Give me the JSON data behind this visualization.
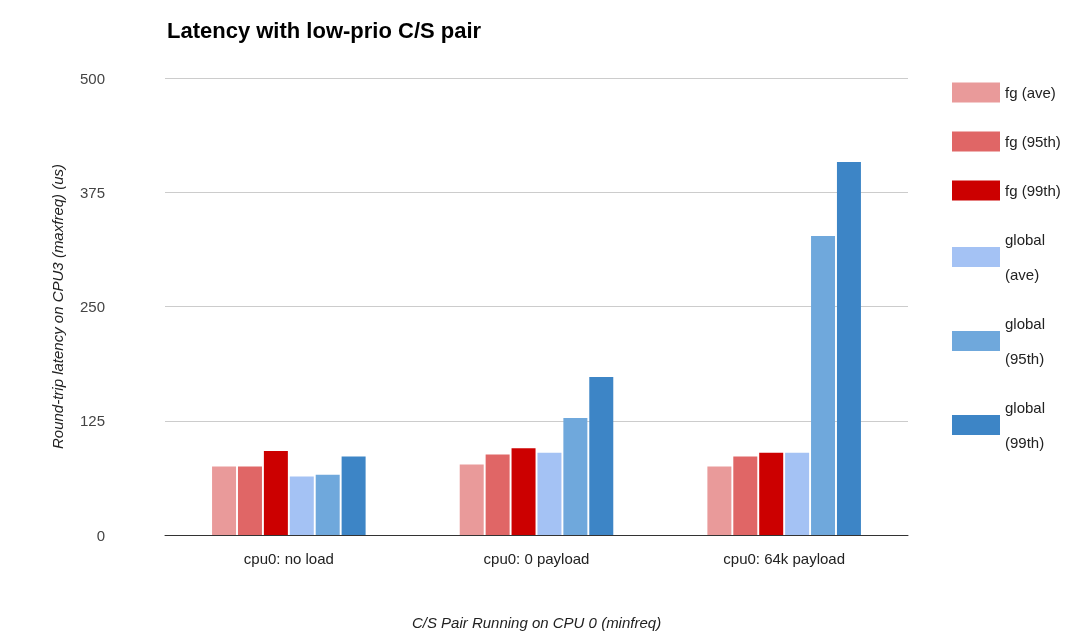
{
  "chart_data": {
    "type": "bar",
    "title": "Latency with low-prio C/S pair",
    "xlabel": "C/S Pair Running on CPU 0 (minfreq)",
    "ylabel": "Round-trip latency on CPU3 (maxfreq) (us)",
    "categories": [
      "cpu0: no load",
      "cpu0: 0 payload",
      "cpu0: 64k payload"
    ],
    "series": [
      {
        "name": "fg (ave)",
        "color": "#e99a9a",
        "values": [
          75,
          77,
          75
        ]
      },
      {
        "name": "fg (95th)",
        "color": "#e06666",
        "values": [
          75,
          88,
          86
        ]
      },
      {
        "name": "fg (99th)",
        "color": "#cc0000",
        "values": [
          92,
          95,
          90
        ]
      },
      {
        "name": "global (ave)",
        "color": "#a4c2f4",
        "values": [
          64,
          90,
          90
        ]
      },
      {
        "name": "global (95th)",
        "color": "#6fa8dc",
        "values": [
          66,
          128,
          327
        ]
      },
      {
        "name": "global (99th)",
        "color": "#3d85c6",
        "values": [
          86,
          173,
          408
        ]
      }
    ],
    "ylim": [
      0,
      500
    ],
    "yticks": [
      0,
      125,
      250,
      375,
      500
    ],
    "grid": "y",
    "legend": "top right"
  }
}
